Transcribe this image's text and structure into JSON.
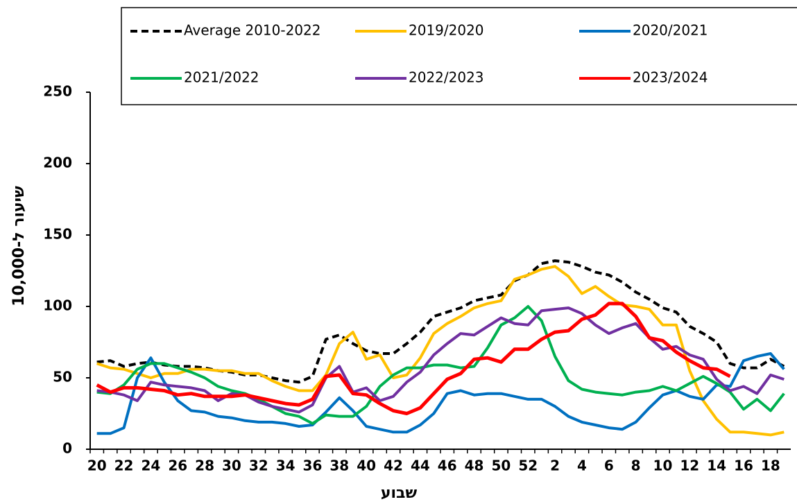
{
  "chart_data": {
    "type": "line",
    "x_label": "שבוע",
    "y_label": "שיעור ל-10,000",
    "categories": [
      "20",
      null,
      "22",
      null,
      "24",
      null,
      "26",
      null,
      "28",
      null,
      "30",
      null,
      "32",
      null,
      "34",
      null,
      "36",
      null,
      "38",
      null,
      "40",
      null,
      "42",
      null,
      "44",
      null,
      "46",
      null,
      "48",
      null,
      "50",
      null,
      "52",
      null,
      "2",
      null,
      "4",
      null,
      "6",
      null,
      "8",
      null,
      "10",
      null,
      "12",
      null,
      "14",
      null,
      "16",
      null,
      "18",
      null
    ],
    "ylim": [
      0,
      250
    ],
    "yticks": [
      0,
      50,
      100,
      150,
      200,
      250
    ],
    "series": [
      {
        "name": "Average 2010-2022",
        "color": "#000000",
        "linestyle": "dashed",
        "values": [
          61,
          62,
          58,
          60,
          61,
          59,
          58,
          58,
          57,
          55,
          54,
          52,
          52,
          50,
          48,
          47,
          51,
          77,
          80,
          74,
          69,
          67,
          67,
          74,
          82,
          93,
          96,
          99,
          104,
          106,
          108,
          118,
          122,
          130,
          132,
          131,
          128,
          124,
          122,
          117,
          110,
          105,
          99,
          96,
          86,
          81,
          75,
          60,
          57,
          57,
          63,
          58
        ]
      },
      {
        "name": "2019/2020",
        "color": "#ffc000",
        "linestyle": "solid",
        "values": [
          60,
          57,
          56,
          53,
          50,
          53,
          53,
          56,
          56,
          55,
          55,
          53,
          53,
          48,
          44,
          41,
          41,
          52,
          74,
          82,
          63,
          66,
          50,
          52,
          64,
          81,
          88,
          93,
          99,
          102,
          104,
          119,
          122,
          126,
          128,
          121,
          109,
          114,
          107,
          101,
          100,
          98,
          87,
          87,
          55,
          34,
          21,
          12,
          12,
          11,
          10,
          12
        ]
      },
      {
        "name": "2020/2021",
        "color": "#0070c0",
        "linestyle": "solid",
        "values": [
          11,
          11,
          15,
          50,
          64,
          47,
          34,
          27,
          26,
          23,
          22,
          20,
          19,
          19,
          18,
          16,
          17,
          26,
          36,
          27,
          16,
          14,
          12,
          12,
          17,
          25,
          39,
          41,
          38,
          39,
          39,
          37,
          35,
          35,
          30,
          23,
          19,
          17,
          15,
          14,
          19,
          29,
          38,
          41,
          37,
          35,
          45,
          44,
          62,
          65,
          67,
          56
        ]
      },
      {
        "name": "2021/2022",
        "color": "#00b050",
        "linestyle": "solid",
        "values": [
          40,
          39,
          45,
          56,
          60,
          60,
          57,
          54,
          50,
          44,
          41,
          39,
          35,
          30,
          25,
          23,
          18,
          24,
          23,
          23,
          30,
          44,
          52,
          57,
          57,
          59,
          59,
          57,
          58,
          71,
          87,
          92,
          100,
          90,
          65,
          48,
          42,
          40,
          39,
          38,
          40,
          41,
          44,
          41,
          46,
          51,
          46,
          40,
          28,
          35,
          27,
          39
        ]
      },
      {
        "name": "2022/2023",
        "color": "#7030a0",
        "linestyle": "solid",
        "values": [
          41,
          40,
          38,
          34,
          47,
          45,
          44,
          43,
          41,
          34,
          39,
          38,
          33,
          30,
          28,
          26,
          31,
          50,
          58,
          40,
          43,
          34,
          37,
          47,
          54,
          66,
          74,
          81,
          80,
          86,
          92,
          88,
          87,
          97,
          98,
          99,
          95,
          87,
          81,
          85,
          88,
          78,
          70,
          72,
          66,
          63,
          49,
          41,
          44,
          39,
          52,
          49
        ]
      },
      {
        "name": "2023/2024",
        "color": "#ff0000",
        "linestyle": "solid",
        "values": [
          45,
          40,
          43,
          43,
          42,
          41,
          38,
          39,
          37,
          37,
          37,
          38,
          36,
          34,
          32,
          31,
          35,
          51,
          52,
          39,
          38,
          32,
          27,
          25,
          29,
          39,
          49,
          53,
          63,
          64,
          61,
          70,
          70,
          77,
          82,
          83,
          91,
          94,
          102,
          102,
          93,
          78,
          76,
          68,
          62,
          57,
          56,
          51,
          null,
          null,
          null,
          null
        ]
      }
    ]
  }
}
